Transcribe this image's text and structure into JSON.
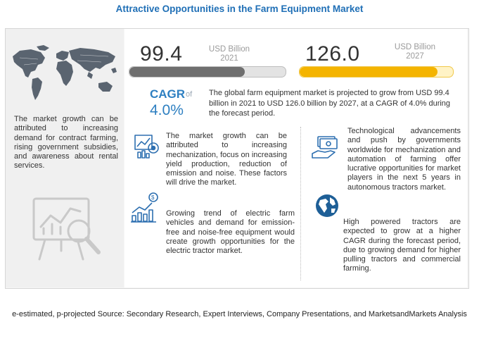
{
  "title": "Attractive Opportunities in the Farm Equipment  Market",
  "left_panel": {
    "text": "The market growth can be attributed to increasing demand for contract farming, rising government subsidies, and awareness about rental services."
  },
  "stats": {
    "y2021": {
      "value": "99.4",
      "unit": "USD Billion",
      "year": "2021",
      "fill_fraction": 0.74
    },
    "y2027": {
      "value": "126.0",
      "unit": "USD Billion",
      "year": "2027",
      "fill_fraction": 0.9
    }
  },
  "cagr": {
    "label": "CAGR",
    "of": "of",
    "value": "4.0%"
  },
  "summary": "The global farm equipment market is projected to grow from USD 99.4 billion in 2021 to USD 126.0 billion by 2027, at a CAGR of 4.0% during the forecast period.",
  "insights": [
    {
      "icon": "mechanization-chart-icon",
      "text": "The market growth can be attributed to increasing mechanization, focus on increasing yield production, reduction of emission and noise. These factors will drive the market."
    },
    {
      "icon": "growth-bar-chart-icon",
      "text": "Growing trend of electric farm vehicles and demand for emission-free and noise-free equipment would create growth opportunities for the electric tractor market."
    },
    {
      "icon": "money-hand-icon",
      "text": "Technological advancements and push by governments worldwide for mechanization and automation of farming offer lucrative opportunities for market players in the next 5 years in autonomous tractors market."
    },
    {
      "icon": "globe-icon",
      "text": "High powered tractors are expected to grow at a higher CAGR during the forecast period, due to growing demand for higher pulling tractors and commercial farming."
    }
  ],
  "colors": {
    "title": "#1f6fb6",
    "cagr": "#2d7fc1",
    "bar_2021": "#6f6f6f",
    "bar_2027": "#f4b400"
  },
  "footer": "e-estimated, p-projected Source: Secondary Research, Expert Interviews, Company Presentations, and MarketsandMarkets Analysis"
}
